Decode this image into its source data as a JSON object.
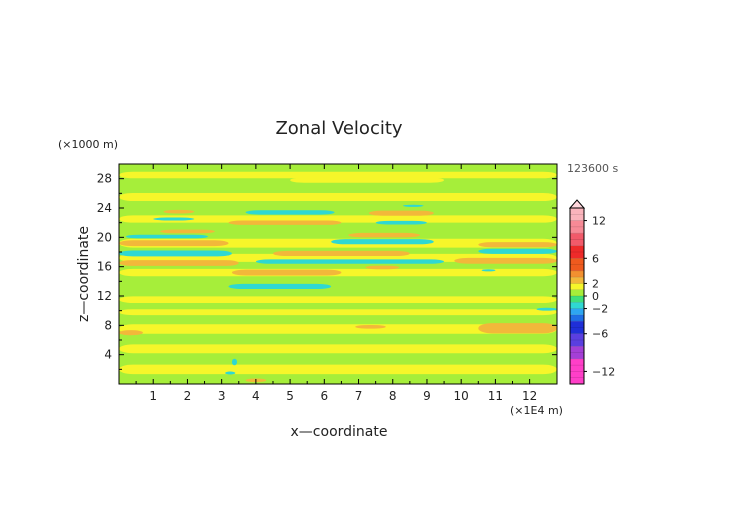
{
  "chart_data": {
    "type": "heatmap",
    "title": "Zonal Velocity",
    "xlabel": "x—coordinate",
    "ylabel": "z—coordinate",
    "x_unit": "(×1E4 m)",
    "y_unit": "(×1000 m)",
    "time_label": "123600 s",
    "xlim": [
      0,
      12.8
    ],
    "ylim": [
      0,
      30
    ],
    "x_ticks": [
      "1",
      "2",
      "3",
      "4",
      "5",
      "6",
      "7",
      "8",
      "9",
      "10",
      "11",
      "12"
    ],
    "y_ticks": [
      "4",
      "8",
      "12",
      "16",
      "20",
      "24",
      "28"
    ],
    "background_value": 0.5,
    "colorbar": {
      "vmin": -14,
      "vmax": 14,
      "tick_labels": [
        "12",
        "6",
        "2",
        "0",
        "−2",
        "−6",
        "−12"
      ],
      "bands": [
        {
          "from": -14,
          "to": -10,
          "color": "#ff3fc8"
        },
        {
          "from": -10,
          "to": -8,
          "color": "#a43fd6"
        },
        {
          "from": -8,
          "to": -6,
          "color": "#5a3fe0"
        },
        {
          "from": -6,
          "to": -4,
          "color": "#1f2fd8"
        },
        {
          "from": -4,
          "to": -3,
          "color": "#1f6fe6"
        },
        {
          "from": -3,
          "to": -2,
          "color": "#2ea6f2"
        },
        {
          "from": -2,
          "to": -1,
          "color": "#2fd8d2"
        },
        {
          "from": -1,
          "to": 0,
          "color": "#3fe07a"
        },
        {
          "from": 0,
          "to": 1,
          "color": "#a6ee3a"
        },
        {
          "from": 1,
          "to": 2,
          "color": "#f6f62a"
        },
        {
          "from": 2,
          "to": 3,
          "color": "#f2b83a"
        },
        {
          "from": 3,
          "to": 4,
          "color": "#f29030"
        },
        {
          "from": 4,
          "to": 6,
          "color": "#ef5a1e"
        },
        {
          "from": 6,
          "to": 8,
          "color": "#ee2a2a"
        },
        {
          "from": 8,
          "to": 10,
          "color": "#f25a6a"
        },
        {
          "from": 10,
          "to": 12,
          "color": "#f78a96"
        },
        {
          "from": 12,
          "to": 14,
          "color": "#fab4bc"
        }
      ]
    },
    "features": [
      {
        "x0": 0.0,
        "x1": 12.8,
        "y": 28.5,
        "h": 0.9,
        "value": 1.5
      },
      {
        "x0": 5.0,
        "x1": 9.5,
        "y": 27.8,
        "h": 0.7,
        "value": 1.5
      },
      {
        "x0": 0.0,
        "x1": 12.8,
        "y": 25.5,
        "h": 1.1,
        "value": 1.5
      },
      {
        "x0": 0.0,
        "x1": 12.8,
        "y": 22.5,
        "h": 1.0,
        "value": 1.5
      },
      {
        "x0": 0.0,
        "x1": 12.8,
        "y": 19.2,
        "h": 1.2,
        "value": 1.5
      },
      {
        "x0": 0.0,
        "x1": 12.8,
        "y": 17.2,
        "h": 1.1,
        "value": 1.5
      },
      {
        "x0": 0.0,
        "x1": 12.8,
        "y": 15.2,
        "h": 1.0,
        "value": 1.5
      },
      {
        "x0": 0.0,
        "x1": 12.8,
        "y": 11.5,
        "h": 0.9,
        "value": 1.5
      },
      {
        "x0": 0.0,
        "x1": 12.8,
        "y": 9.8,
        "h": 0.8,
        "value": 1.5
      },
      {
        "x0": 0.0,
        "x1": 12.8,
        "y": 7.5,
        "h": 1.3,
        "value": 1.5
      },
      {
        "x0": 0.0,
        "x1": 12.8,
        "y": 4.8,
        "h": 1.2,
        "value": 1.5
      },
      {
        "x0": 0.0,
        "x1": 12.8,
        "y": 2.0,
        "h": 1.3,
        "value": 1.5
      },
      {
        "x0": 5.5,
        "x1": 8.5,
        "y": 29.3,
        "h": 0.6,
        "value": 0.4
      },
      {
        "x0": 0.0,
        "x1": 12.8,
        "y": 27.0,
        "h": 0.6,
        "value": 0.4
      },
      {
        "x0": 0.0,
        "x1": 12.8,
        "y": 24.0,
        "h": 0.8,
        "value": 0.4
      },
      {
        "x0": 0.0,
        "x1": 12.8,
        "y": 20.8,
        "h": 0.8,
        "value": 0.4
      },
      {
        "x0": 0.0,
        "x1": 12.8,
        "y": 18.2,
        "h": 0.7,
        "value": 0.4
      },
      {
        "x0": 0.0,
        "x1": 12.8,
        "y": 16.2,
        "h": 0.7,
        "value": 0.4
      },
      {
        "x0": 0.0,
        "x1": 12.8,
        "y": 13.6,
        "h": 1.4,
        "value": 0.4
      },
      {
        "x0": 0.0,
        "x1": 12.8,
        "y": 10.6,
        "h": 0.6,
        "value": 0.4
      },
      {
        "x0": 0.0,
        "x1": 12.8,
        "y": 8.8,
        "h": 0.6,
        "value": 0.4
      },
      {
        "x0": 0.0,
        "x1": 12.8,
        "y": 6.0,
        "h": 1.0,
        "value": 0.4
      },
      {
        "x0": 0.0,
        "x1": 12.8,
        "y": 3.3,
        "h": 0.9,
        "value": 0.4
      },
      {
        "x0": 0.0,
        "x1": 12.8,
        "y": 0.6,
        "h": 0.9,
        "value": 0.4
      },
      {
        "x0": 1.3,
        "x1": 2.2,
        "y": 23.5,
        "h": 0.5,
        "value": 2.5
      },
      {
        "x0": 3.2,
        "x1": 6.5,
        "y": 22.0,
        "h": 0.6,
        "value": 2.5
      },
      {
        "x0": 7.3,
        "x1": 9.2,
        "y": 23.3,
        "h": 0.7,
        "value": 2.5
      },
      {
        "x0": 1.2,
        "x1": 2.8,
        "y": 20.8,
        "h": 0.5,
        "value": 2.5
      },
      {
        "x0": 6.7,
        "x1": 8.8,
        "y": 20.3,
        "h": 0.6,
        "value": 2.5
      },
      {
        "x0": 0.0,
        "x1": 3.2,
        "y": 19.2,
        "h": 0.8,
        "value": 2.5
      },
      {
        "x0": 10.5,
        "x1": 12.8,
        "y": 19.0,
        "h": 0.7,
        "value": 2.5
      },
      {
        "x0": 4.5,
        "x1": 8.5,
        "y": 17.8,
        "h": 0.7,
        "value": 2.5
      },
      {
        "x0": 0.0,
        "x1": 3.5,
        "y": 16.5,
        "h": 0.8,
        "value": 2.5
      },
      {
        "x0": 9.8,
        "x1": 12.8,
        "y": 16.8,
        "h": 0.8,
        "value": 2.5
      },
      {
        "x0": 7.2,
        "x1": 8.2,
        "y": 15.9,
        "h": 0.5,
        "value": 2.5
      },
      {
        "x0": 3.3,
        "x1": 6.5,
        "y": 15.2,
        "h": 0.8,
        "value": 2.5
      },
      {
        "x0": 6.9,
        "x1": 7.8,
        "y": 7.8,
        "h": 0.5,
        "value": 2.5
      },
      {
        "x0": 10.5,
        "x1": 12.8,
        "y": 7.6,
        "h": 1.4,
        "value": 2.5
      },
      {
        "x0": 0.0,
        "x1": 0.7,
        "y": 7.0,
        "h": 0.7,
        "value": 2.5
      },
      {
        "x0": 3.7,
        "x1": 4.3,
        "y": 0.5,
        "h": 0.5,
        "value": 2.5
      },
      {
        "x0": 1.0,
        "x1": 2.2,
        "y": 22.5,
        "h": 0.4,
        "value": -1.5
      },
      {
        "x0": 3.7,
        "x1": 6.3,
        "y": 23.4,
        "h": 0.6,
        "value": -1.5
      },
      {
        "x0": 7.5,
        "x1": 9.0,
        "y": 22.0,
        "h": 0.5,
        "value": -1.5
      },
      {
        "x0": 8.3,
        "x1": 8.9,
        "y": 24.3,
        "h": 0.3,
        "value": -1.5
      },
      {
        "x0": 0.2,
        "x1": 2.6,
        "y": 20.1,
        "h": 0.5,
        "value": -1.5
      },
      {
        "x0": 6.2,
        "x1": 9.2,
        "y": 19.4,
        "h": 0.7,
        "value": -1.5
      },
      {
        "x0": 0.0,
        "x1": 3.3,
        "y": 17.8,
        "h": 0.8,
        "value": -1.5
      },
      {
        "x0": 10.5,
        "x1": 12.8,
        "y": 18.1,
        "h": 0.7,
        "value": -1.5
      },
      {
        "x0": 4.0,
        "x1": 9.5,
        "y": 16.7,
        "h": 0.6,
        "value": -1.5
      },
      {
        "x0": 3.2,
        "x1": 6.2,
        "y": 13.3,
        "h": 0.7,
        "value": -1.5
      },
      {
        "x0": 10.6,
        "x1": 11.0,
        "y": 15.5,
        "h": 0.3,
        "value": -1.5
      },
      {
        "x0": 3.3,
        "x1": 3.45,
        "y": 3.0,
        "h": 0.9,
        "value": -1.5
      },
      {
        "x0": 3.1,
        "x1": 3.4,
        "y": 1.5,
        "h": 0.4,
        "value": -1.5
      },
      {
        "x0": 12.2,
        "x1": 12.8,
        "y": 10.2,
        "h": 0.4,
        "value": -1.5
      }
    ]
  }
}
